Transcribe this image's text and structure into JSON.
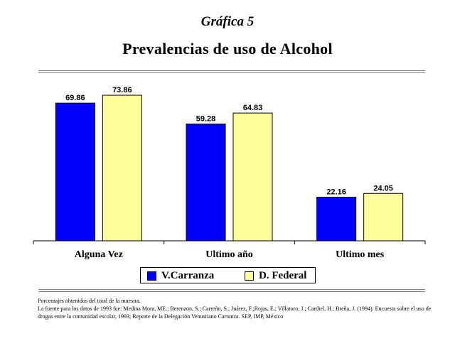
{
  "header": {
    "supertitle": "Gráfica 5",
    "title": "Prevalencias de uso de Alcohol"
  },
  "chart_data": {
    "type": "bar",
    "title": "Prevalencias de uso de Alcohol",
    "categories": [
      "Alguna Vez",
      "Ultimo año",
      "Ultimo mes"
    ],
    "series": [
      {
        "name": "V.Carranza",
        "values": [
          69.86,
          59.28,
          22.16
        ],
        "color": "#0000ff"
      },
      {
        "name": "D. Federal",
        "values": [
          73.86,
          64.83,
          24.05
        ],
        "color": "#ffff99"
      }
    ],
    "value_labels": [
      [
        "69.86",
        "59.28",
        "22.16"
      ],
      [
        "73.86",
        "64.83",
        "24.05"
      ]
    ],
    "ylim": [
      0,
      80
    ],
    "grid": false,
    "legend_position": "bottom"
  },
  "legend": {
    "items": [
      {
        "label": "V.Carranza",
        "color": "#0000ff"
      },
      {
        "label": "D. Federal",
        "color": "#ffff99"
      }
    ]
  },
  "footnotes": {
    "line1": "Porcentajes obtenidos del total de la muestra.",
    "line2": "La fuente para los datos de 1993 fue: Medina Mora, ME.; Berenzon, S.; Carreño, S.; Juárez, F.;Rojas, E.; Villatoro, J.; Cardiel, H.; Breña, J. (1994). Encuesta sobre el uso de drogas entre la comunidad escolar, 1993; Reporte de la Delegación Venustiano Carranza. SEP, IMP, México"
  }
}
